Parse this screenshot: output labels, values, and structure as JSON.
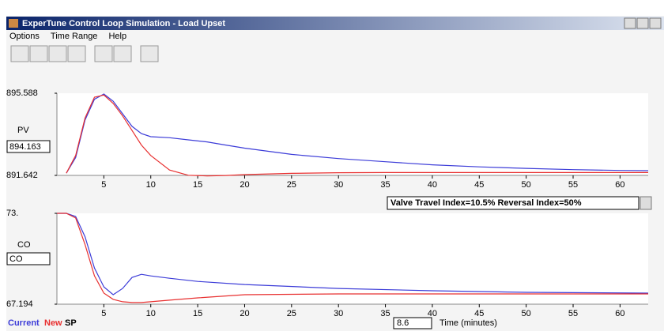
{
  "window": {
    "title": "ExperTune Control Loop Simulation - Load Upset"
  },
  "menu": [
    "Options",
    "Time Range",
    "Help"
  ],
  "chart_data": [
    {
      "type": "line",
      "y_label": "PV",
      "field": "894.163",
      "x": [
        1,
        2,
        3,
        4,
        5,
        6,
        7,
        8,
        9,
        10,
        12,
        14,
        16,
        18,
        20,
        25,
        30,
        35,
        40,
        45,
        50,
        55,
        60,
        63
      ],
      "xlim": [
        0,
        63
      ],
      "xticks": [
        5,
        10,
        15,
        20,
        25,
        30,
        35,
        40,
        45,
        50,
        55,
        60
      ],
      "ylim": [
        891.642,
        895.588
      ],
      "yticks": [
        891.642,
        895.588
      ],
      "series": [
        {
          "name": "Current",
          "color": "#3c3cd8",
          "values": [
            891.75,
            892.5,
            894.3,
            895.3,
            895.55,
            895.2,
            894.6,
            894.0,
            893.65,
            893.5,
            893.45,
            893.35,
            893.25,
            893.1,
            892.95,
            892.65,
            892.45,
            892.3,
            892.15,
            892.05,
            891.98,
            891.92,
            891.88,
            891.87
          ]
        },
        {
          "name": "New",
          "color": "#e83030",
          "values": [
            891.75,
            892.6,
            894.4,
            895.4,
            895.5,
            895.1,
            894.5,
            893.8,
            893.1,
            892.6,
            891.9,
            891.65,
            891.62,
            891.64,
            891.68,
            891.74,
            891.77,
            891.78,
            891.78,
            891.78,
            891.78,
            891.78,
            891.78,
            891.78
          ]
        }
      ]
    },
    {
      "type": "line",
      "y_label": "CO",
      "field": "CO",
      "x": [
        0,
        1,
        2,
        3,
        4,
        5,
        6,
        7,
        8,
        9,
        10,
        12,
        15,
        20,
        30,
        40,
        50,
        63
      ],
      "xlim": [
        0,
        63
      ],
      "xticks": [
        5,
        10,
        15,
        20,
        25,
        30,
        35,
        40,
        45,
        50,
        55,
        60
      ],
      "ylim": [
        67.194,
        73
      ],
      "yticks": [
        67.194,
        {
          "value": 73,
          "label": "73."
        }
      ],
      "series": [
        {
          "name": "Current",
          "color": "#3c3cd8",
          "values": [
            73,
            73,
            72.8,
            71.5,
            69.5,
            68.3,
            67.8,
            68.2,
            68.9,
            69.1,
            69.0,
            68.85,
            68.65,
            68.45,
            68.2,
            68.05,
            67.95,
            67.9
          ]
        },
        {
          "name": "New",
          "color": "#e83030",
          "values": [
            73,
            73,
            72.7,
            71.0,
            69.0,
            67.9,
            67.5,
            67.35,
            67.3,
            67.3,
            67.35,
            67.45,
            67.6,
            67.8,
            67.85,
            67.85,
            67.85,
            67.85
          ]
        }
      ]
    }
  ],
  "valve_index": "Valve Travel Index=10.5%  Reversal Index=50%",
  "status": {
    "sp": "SP",
    "time_field": "8.6",
    "time_label": "Time (minutes)"
  }
}
